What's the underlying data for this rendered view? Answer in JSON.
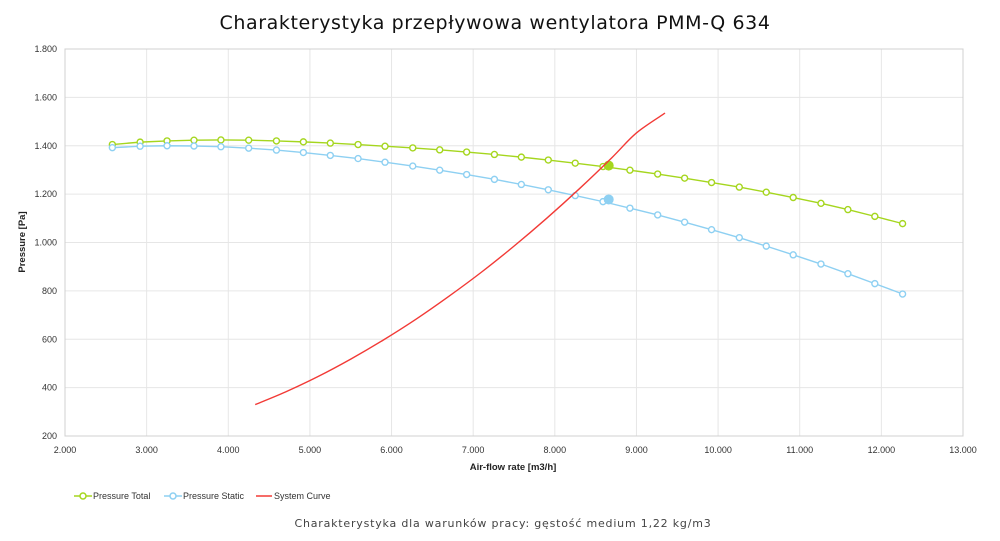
{
  "chart_data": {
    "type": "line",
    "title": "Charakterystyka przepływowa wentylatora PMM-Q 634",
    "subtitle": "Charakterystyka dla warunków pracy: gęstość medium 1,22 kg/m3",
    "xlabel": "Air-flow rate [m3/h]",
    "ylabel": "Pressure [Pa]",
    "xlim": [
      2000,
      13000
    ],
    "ylim": [
      200,
      1800
    ],
    "x_ticks": [
      2000,
      3000,
      4000,
      5000,
      6000,
      7000,
      8000,
      9000,
      10000,
      11000,
      12000,
      13000
    ],
    "x_tick_labels": [
      "2.000",
      "3.000",
      "4.000",
      "5.000",
      "6.000",
      "7.000",
      "8.000",
      "9.000",
      "10.000",
      "11.000",
      "12.000",
      "13.000"
    ],
    "y_ticks": [
      200,
      400,
      600,
      800,
      1000,
      1200,
      1400,
      1600,
      1800
    ],
    "y_tick_labels": [
      "200",
      "400",
      "600",
      "800",
      "1.000",
      "1.200",
      "1.400",
      "1.600",
      "1.800"
    ],
    "grid": true,
    "legend_position": "bottom-left",
    "series": [
      {
        "name": "Pressure Total",
        "color": "#a5d61e",
        "marker": "circle-open",
        "x": [
          2580,
          2920,
          3250,
          3580,
          3910,
          4250,
          4590,
          4920,
          5250,
          5590,
          5920,
          6260,
          6590,
          6920,
          7260,
          7590,
          7920,
          8250,
          8590,
          8920,
          9260,
          9590,
          9920,
          10260,
          10590,
          10920,
          11260,
          11590,
          11920,
          12260
        ],
        "values": [
          1405,
          1415,
          1420,
          1423,
          1424,
          1423,
          1420,
          1416,
          1411,
          1405,
          1398,
          1391,
          1383,
          1374,
          1364,
          1353,
          1341,
          1328,
          1314,
          1299,
          1283,
          1266,
          1248,
          1229,
          1208,
          1186,
          1162,
          1136,
          1108,
          1078
        ],
        "highlight": {
          "x": 8660,
          "y": 1318
        }
      },
      {
        "name": "Pressure Static",
        "color": "#8ed0f2",
        "marker": "circle-open",
        "x": [
          2580,
          2920,
          3250,
          3580,
          3910,
          4250,
          4590,
          4920,
          5250,
          5590,
          5920,
          6260,
          6590,
          6920,
          7260,
          7590,
          7920,
          8250,
          8590,
          8920,
          9260,
          9590,
          9920,
          10260,
          10590,
          10920,
          11260,
          11590,
          11920,
          12260
        ],
        "values": [
          1392,
          1398,
          1400,
          1399,
          1396,
          1390,
          1382,
          1372,
          1360,
          1347,
          1332,
          1316,
          1299,
          1281,
          1261,
          1240,
          1218,
          1194,
          1169,
          1142,
          1114,
          1084,
          1053,
          1020,
          985,
          949,
          911,
          871,
          830,
          787
        ],
        "highlight": {
          "x": 8660,
          "y": 1178
        }
      },
      {
        "name": "System Curve",
        "color": "#f23a36",
        "marker": "none",
        "x": [
          4330,
          4700,
          5100,
          5500,
          5900,
          6300,
          6700,
          7100,
          7500,
          7900,
          8300,
          8700,
          9000,
          9350
        ],
        "values": [
          330,
          382,
          446,
          518,
          597,
          683,
          777,
          877,
          985,
          1100,
          1222,
          1351,
          1453,
          1535
        ]
      }
    ]
  }
}
